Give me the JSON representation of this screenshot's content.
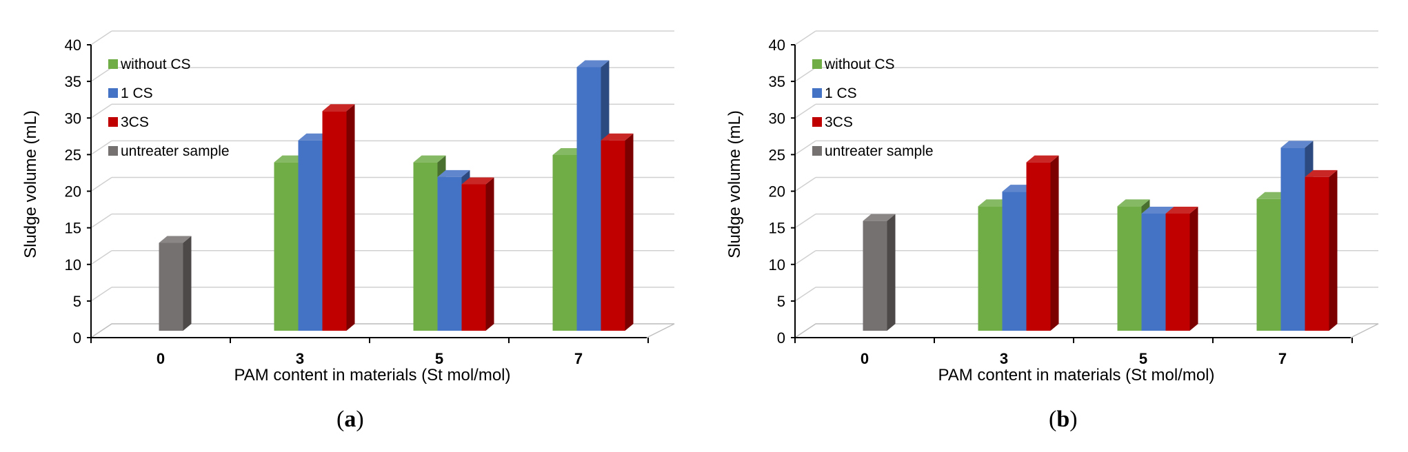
{
  "chart_data": [
    {
      "panel": "a",
      "caption_letter": "a",
      "type": "bar",
      "xlabel": "PAM content in materials (St mol/mol)",
      "ylabel": "Sludge volume (mL)",
      "ylim": [
        0,
        40
      ],
      "yticks": [
        "0",
        "5",
        "10",
        "15",
        "20",
        "25",
        "30",
        "35",
        "40"
      ],
      "categories": [
        "0",
        "3",
        "5",
        "7"
      ],
      "series": [
        {
          "name": "without CS",
          "color": "#70ad47",
          "values": [
            null,
            23,
            23,
            24
          ]
        },
        {
          "name": "1 CS",
          "color": "#4472c4",
          "values": [
            null,
            26,
            21,
            36
          ]
        },
        {
          "name": "3CS",
          "color": "#c00000",
          "values": [
            null,
            30,
            20,
            26
          ]
        },
        {
          "name": "untreater sample",
          "color": "#767171",
          "values": [
            12,
            null,
            null,
            null
          ]
        }
      ],
      "legend_position": "top-left"
    },
    {
      "panel": "b",
      "caption_letter": "b",
      "type": "bar",
      "xlabel": "PAM content in materials (St mol/mol)",
      "ylabel": "Sludge volume (mL)",
      "ylim": [
        0,
        40
      ],
      "yticks": [
        "0",
        "5",
        "10",
        "15",
        "20",
        "25",
        "30",
        "35",
        "40"
      ],
      "categories": [
        "0",
        "3",
        "5",
        "7"
      ],
      "series": [
        {
          "name": "without CS",
          "color": "#70ad47",
          "values": [
            null,
            17,
            17,
            18
          ]
        },
        {
          "name": "1 CS",
          "color": "#4472c4",
          "values": [
            null,
            19,
            16,
            25
          ]
        },
        {
          "name": "3CS",
          "color": "#c00000",
          "values": [
            null,
            23,
            16,
            21
          ]
        },
        {
          "name": "untreater sample",
          "color": "#767171",
          "values": [
            15,
            null,
            null,
            null
          ]
        }
      ],
      "legend_position": "top-left"
    }
  ]
}
